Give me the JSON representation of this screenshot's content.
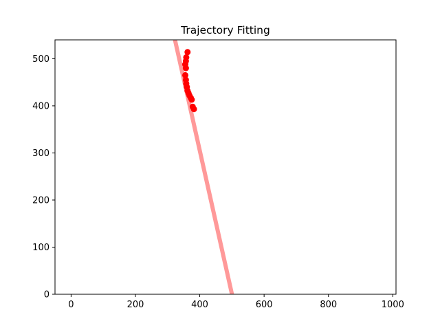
{
  "chart_data": {
    "type": "scatter",
    "title": "Trajectory Fitting",
    "xlabel": "",
    "ylabel": "",
    "xlim": [
      -50,
      1010
    ],
    "ylim": [
      0,
      540
    ],
    "xticks": [
      0,
      200,
      400,
      600,
      800,
      1000
    ],
    "yticks": [
      0,
      100,
      200,
      300,
      400,
      500
    ],
    "grid": false,
    "legend": "none",
    "series": [
      {
        "kind": "points",
        "color": "#ff0000",
        "x": [
          362,
          358,
          357,
          355,
          357,
          355,
          357,
          358,
          360,
          362,
          365,
          368,
          372,
          375,
          378,
          382
        ],
        "y": [
          514,
          503,
          495,
          488,
          480,
          465,
          455,
          447,
          440,
          432,
          427,
          422,
          417,
          413,
          398,
          393
        ]
      },
      {
        "kind": "fit-line",
        "color": "#ff9999",
        "x": [
          323,
          500
        ],
        "y": [
          540,
          0
        ]
      }
    ]
  }
}
